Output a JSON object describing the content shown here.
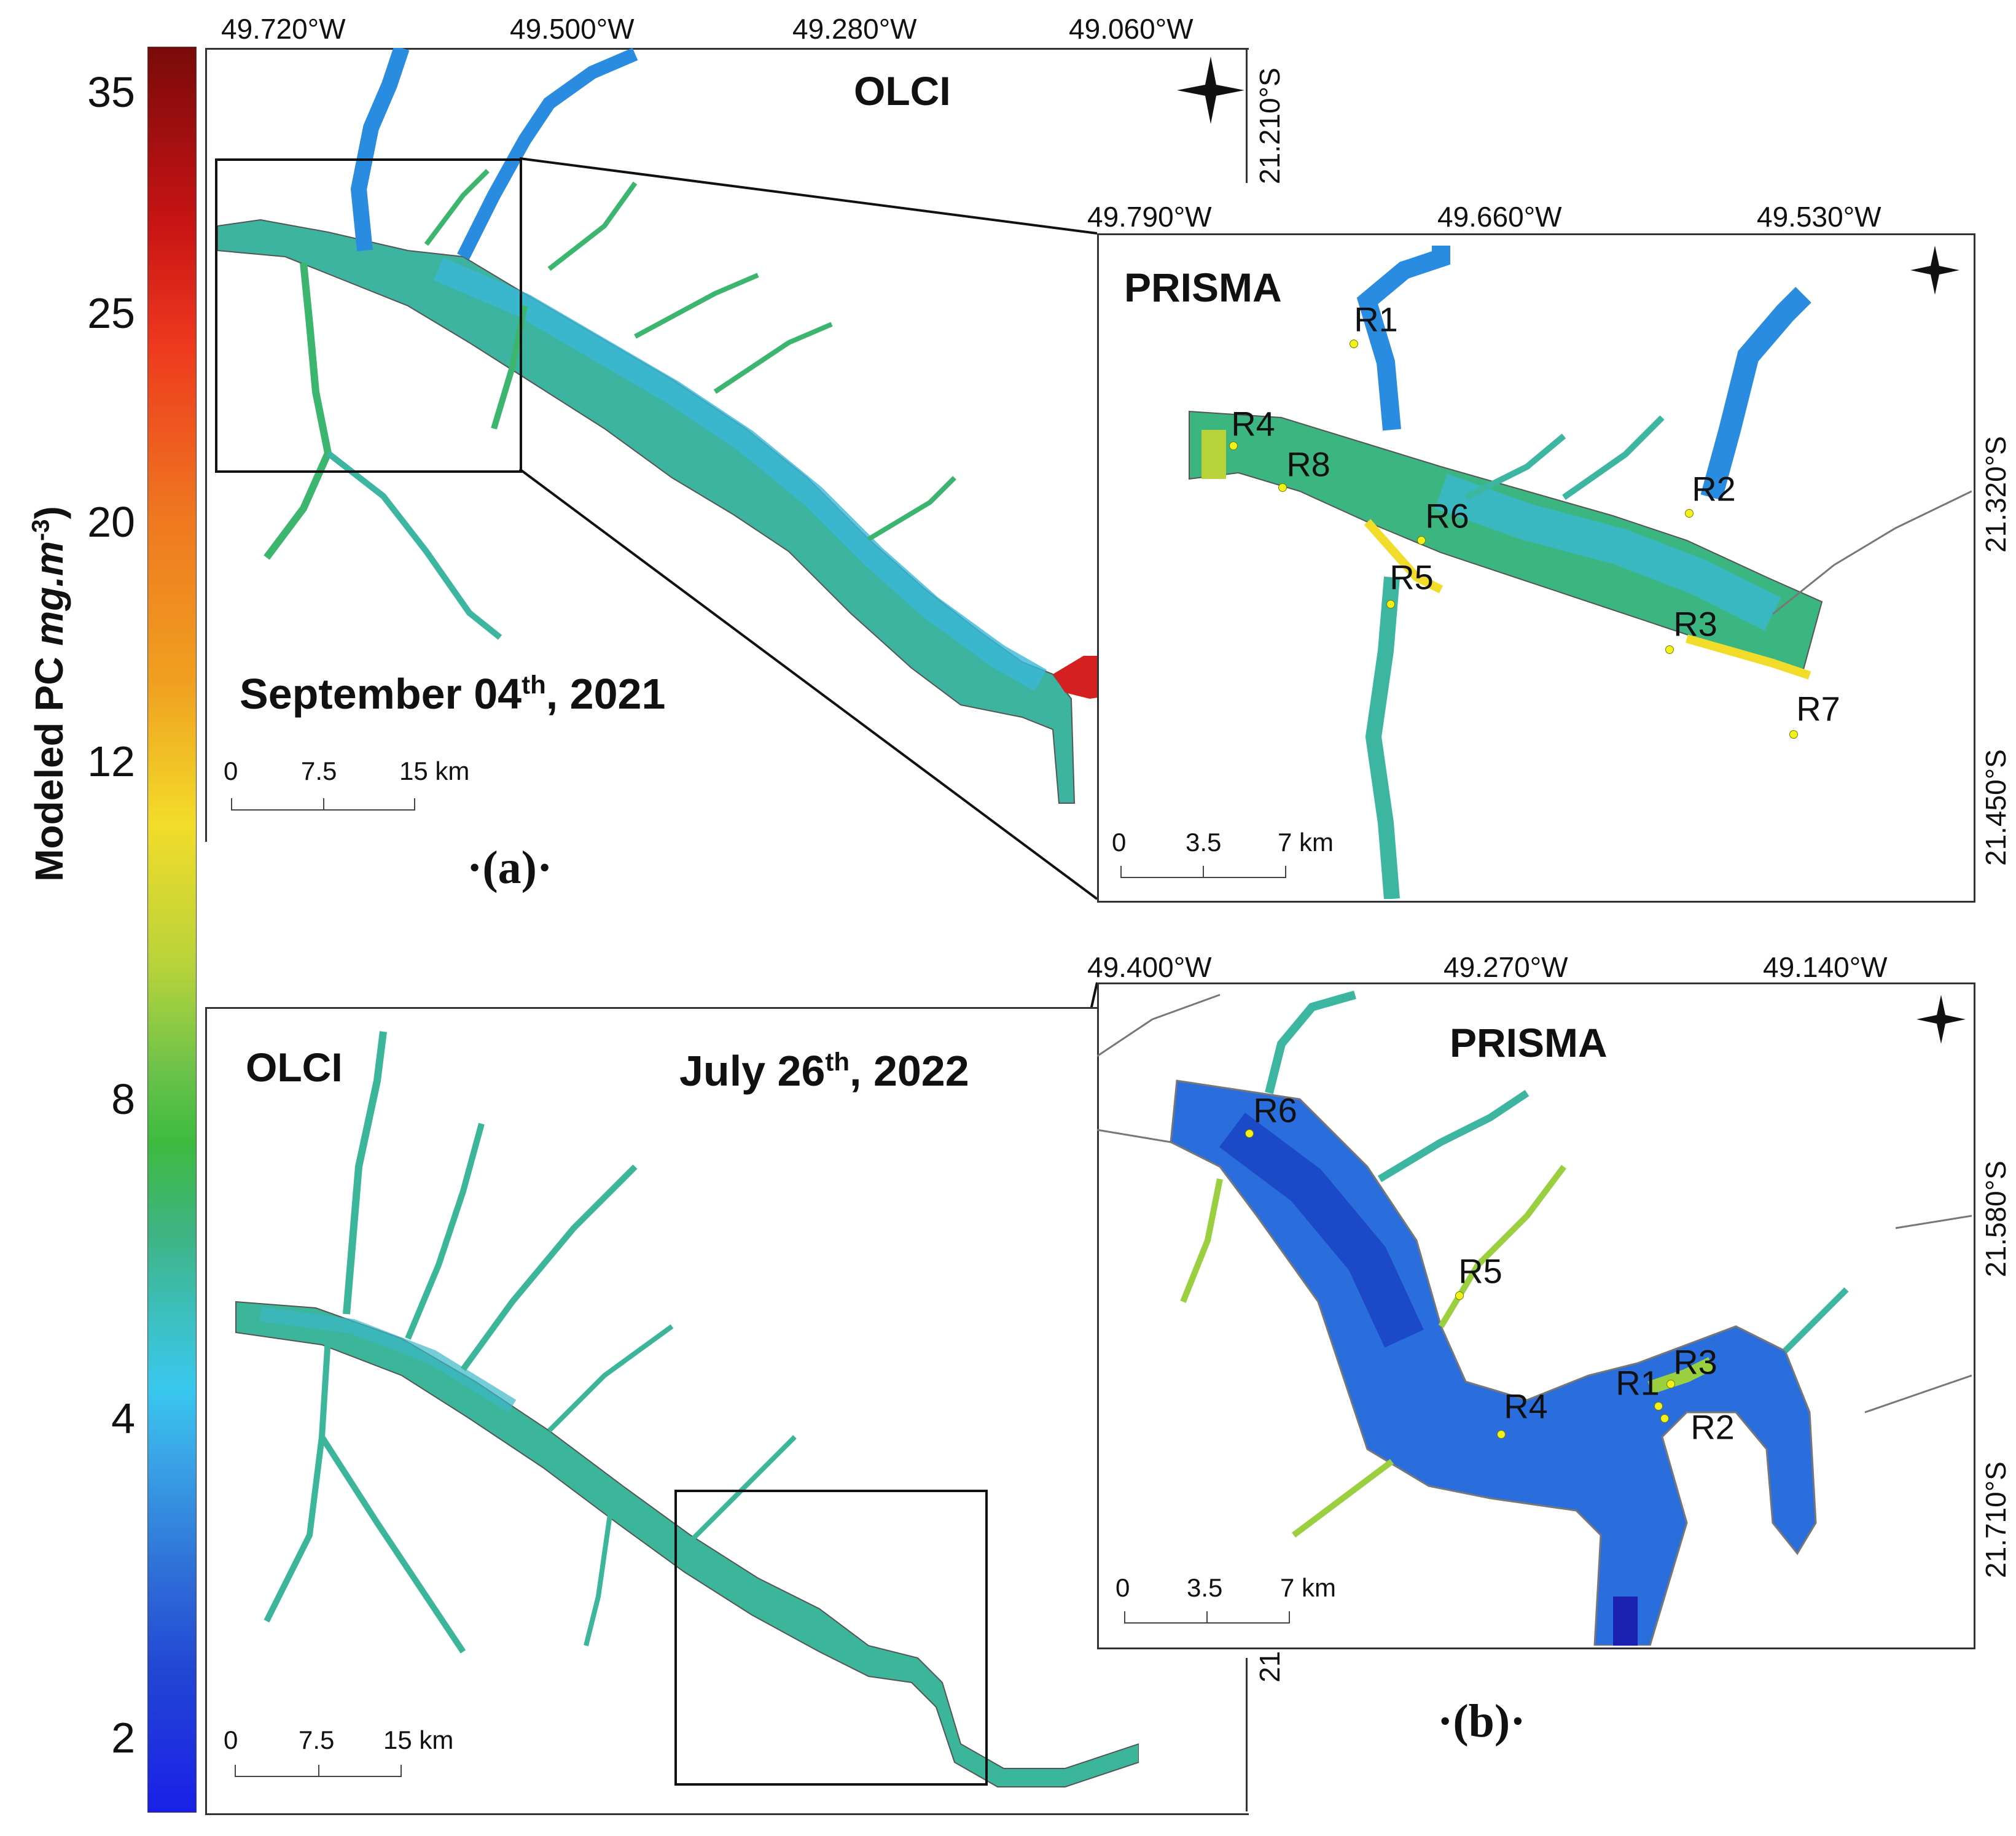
{
  "colorbar": {
    "label": "Modeled PC (mg.m⁻³)",
    "label_main": "Modeled PC ",
    "label_unit": "mg.m",
    "label_exp": "-3",
    "ticks": [
      "35",
      "25",
      "20",
      "12",
      "8",
      "4",
      "2"
    ]
  },
  "panel_a": {
    "letter": "·(a)·",
    "olci": {
      "title": "OLCI",
      "date_main": "September 04",
      "date_sup": "th",
      "date_year": ", 2021",
      "lon_ticks": [
        "49.720°W",
        "49.500°W",
        "49.280°W",
        "49.060°W"
      ],
      "lat_tick": "21.210°S",
      "scale": [
        "0",
        "7.5",
        "15 km"
      ]
    },
    "prisma": {
      "title": "PRISMA",
      "lon_ticks": [
        "49.790°W",
        "49.660°W",
        "49.530°W"
      ],
      "lat_ticks": [
        "21.320°S",
        "21.450°S"
      ],
      "scale": [
        "0",
        "3.5",
        "7 km"
      ],
      "sites": [
        "R1",
        "R4",
        "R8",
        "R6",
        "R2",
        "R5",
        "R3",
        "R7"
      ]
    }
  },
  "panel_b": {
    "letter": "·(b)·",
    "olci": {
      "title": "OLCI",
      "date_main": "July 26",
      "date_sup": "th",
      "date_year": ", 2022",
      "lat_tick_fragment": "21",
      "scale": [
        "0",
        "7.5",
        "15 km"
      ]
    },
    "prisma": {
      "title": "PRISMA",
      "lon_ticks": [
        "49.400°W",
        "49.270°W",
        "49.140°W"
      ],
      "lat_ticks": [
        "21.580°S",
        "21.710°S"
      ],
      "scale": [
        "0",
        "3.5",
        "7 km"
      ],
      "sites": [
        "R6",
        "R5",
        "R3",
        "R1",
        "R4",
        "R2"
      ]
    }
  },
  "colors": {
    "water_green": "#3cb66e",
    "water_cyan": "#3ab8d8",
    "water_blue": "#2a78dc",
    "water_deep": "#1840c0",
    "bloom_red": "#d42020",
    "shore_line": "#555555",
    "site_marker": "#f2f21a"
  }
}
